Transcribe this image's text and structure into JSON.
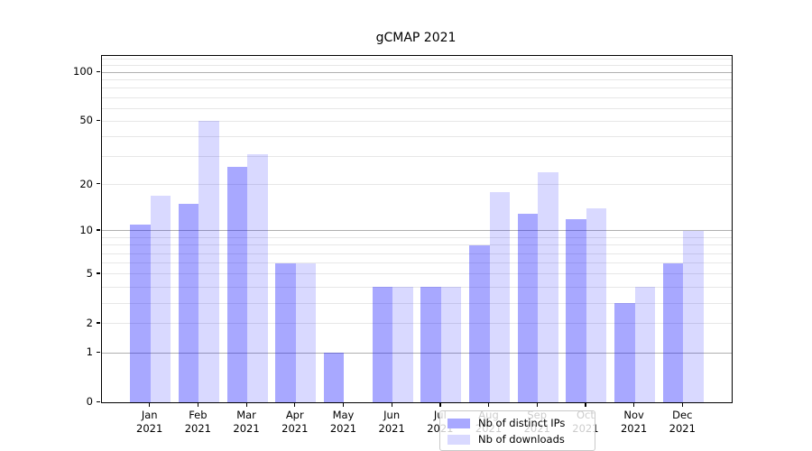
{
  "chart_data": {
    "type": "bar",
    "title": "gCMAP 2021",
    "categories": [
      "Jan",
      "Feb",
      "Mar",
      "Apr",
      "May",
      "Jun",
      "Jul",
      "Aug",
      "Sep",
      "Oct",
      "Nov",
      "Dec"
    ],
    "year": "2021",
    "series": [
      {
        "name": "Nb of distinct IPs",
        "values": [
          11,
          15,
          26,
          6,
          1,
          4,
          4,
          8,
          13,
          12,
          3,
          6
        ],
        "color_hex": "#0000ff",
        "alpha": 0.34,
        "swatch_hex": "#a8a8ff"
      },
      {
        "name": "Nb of downloads",
        "values": [
          17,
          50,
          31,
          6,
          0,
          4,
          4,
          18,
          24,
          14,
          4,
          10
        ],
        "color_hex": "#0000ff",
        "alpha": 0.15,
        "swatch_hex": "#d9d9ff"
      }
    ],
    "xlabel": "",
    "ylabel": "",
    "yscale": "log1p",
    "ylim": [
      0,
      126
    ],
    "yticks": [
      0,
      1,
      2,
      5,
      10,
      20,
      50,
      100
    ],
    "grid_major": [
      1,
      10,
      100
    ],
    "grid_minor": [
      2,
      3,
      4,
      5,
      6,
      7,
      8,
      9,
      20,
      30,
      40,
      50,
      60,
      70,
      80,
      90,
      110,
      120
    ],
    "legend_position": "lower center-left inside plot",
    "colors": {
      "grid_major": "#b0b0b0",
      "grid_minor": "#e7e7e7",
      "axis": "#000000",
      "legend_border": "#c9c9c9"
    }
  }
}
